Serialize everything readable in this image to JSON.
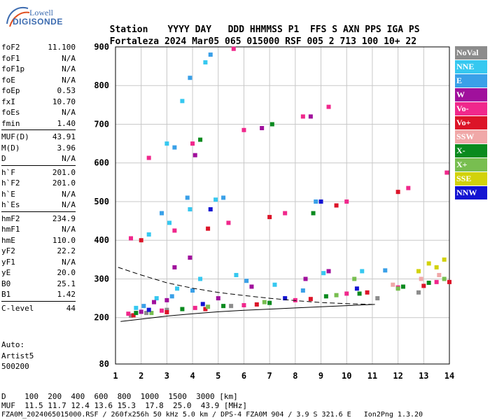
{
  "logo": {
    "line1": "Lowell",
    "line2": "DIGISONDE"
  },
  "header": {
    "row1": [
      "Station",
      "YYYY",
      "DAY",
      "DDD",
      "HHMMSS",
      "P1",
      "FFS",
      "S",
      "AXN",
      "PPS",
      "IGA",
      "PS"
    ],
    "row2": [
      "Fortaleza",
      "2024",
      "Mar05",
      "065",
      "015000",
      "RSF",
      "005",
      "2",
      "713",
      "100",
      "10+",
      "22"
    ]
  },
  "params": [
    [
      {
        "k": "foF2",
        "v": "11.100"
      },
      {
        "k": "foF1",
        "v": "N/A"
      },
      {
        "k": "foF1p",
        "v": "N/A"
      },
      {
        "k": "foE",
        "v": "N/A"
      },
      {
        "k": "foEp",
        "v": "0.53"
      },
      {
        "k": "fxI",
        "v": "10.70"
      },
      {
        "k": "foEs",
        "v": "N/A"
      },
      {
        "k": "fmin",
        "v": "1.40"
      }
    ],
    [
      {
        "k": "MUF(D)",
        "v": "43.91"
      },
      {
        "k": "M(D)",
        "v": "3.96"
      },
      {
        "k": "D",
        "v": "N/A"
      }
    ],
    [
      {
        "k": "h`F",
        "v": "201.0"
      },
      {
        "k": "h`F2",
        "v": "201.0"
      },
      {
        "k": "h`E",
        "v": "N/A"
      },
      {
        "k": "h`Es",
        "v": "N/A"
      }
    ],
    [
      {
        "k": "hmF2",
        "v": "234.9"
      },
      {
        "k": "hmF1",
        "v": "N/A"
      },
      {
        "k": "hmE",
        "v": "110.0"
      },
      {
        "k": "yF2",
        "v": "22.2"
      },
      {
        "k": "yF1",
        "v": "N/A"
      },
      {
        "k": "yE",
        "v": "20.0"
      },
      {
        "k": "B0",
        "v": "25.1"
      },
      {
        "k": "B1",
        "v": "1.42"
      }
    ],
    [
      {
        "k": "C-level",
        "v": "44"
      }
    ]
  ],
  "auto": {
    "line1": "Auto:",
    "line2": "Artist5",
    "line3": "500200"
  },
  "legend": [
    {
      "label": "NoVal",
      "color": "#8c8c8c"
    },
    {
      "label": "NNE",
      "color": "#36c8f0"
    },
    {
      "label": "E",
      "color": "#3aa0e8"
    },
    {
      "label": "W",
      "color": "#a0109c"
    },
    {
      "label": "Vo-",
      "color": "#f0288c"
    },
    {
      "label": "Vo+",
      "color": "#dc1428"
    },
    {
      "label": "SSW",
      "color": "#f0a8a8"
    },
    {
      "label": "X-",
      "color": "#0a8a1e"
    },
    {
      "label": "X+",
      "color": "#78be50"
    },
    {
      "label": "SSE",
      "color": "#d2d20a"
    },
    {
      "label": "NNW",
      "color": "#1414d2"
    }
  ],
  "chart_data": {
    "type": "scatter",
    "xlim": [
      1,
      14
    ],
    "ylim": [
      80,
      900
    ],
    "x_ticks": [
      1,
      2,
      3,
      4,
      5,
      6,
      7,
      8,
      9,
      10,
      11,
      12,
      13,
      14
    ],
    "y_ticks": [
      80,
      200,
      300,
      400,
      500,
      600,
      700,
      800,
      900
    ],
    "grid": true,
    "series": [
      {
        "label": "NoVal",
        "color": "#8c8c8c",
        "points": [
          [
            1.6,
            205
          ],
          [
            2.2,
            212
          ],
          [
            3.0,
            220
          ],
          [
            5.5,
            230
          ],
          [
            11.2,
            250
          ],
          [
            12.8,
            265
          ]
        ]
      },
      {
        "label": "NNE",
        "color": "#36c8f0",
        "points": [
          [
            1.8,
            225
          ],
          [
            2.6,
            250
          ],
          [
            3.4,
            275
          ],
          [
            4.3,
            300
          ],
          [
            5.7,
            310
          ],
          [
            7.2,
            285
          ],
          [
            9.1,
            315
          ],
          [
            10.6,
            320
          ],
          [
            2.3,
            415
          ],
          [
            3.1,
            445
          ],
          [
            3.9,
            480
          ],
          [
            4.9,
            505
          ],
          [
            3.0,
            650
          ],
          [
            3.6,
            760
          ],
          [
            4.5,
            860
          ]
        ]
      },
      {
        "label": "E",
        "color": "#3aa0e8",
        "points": [
          [
            2.1,
            230
          ],
          [
            3.2,
            255
          ],
          [
            4.0,
            270
          ],
          [
            6.1,
            295
          ],
          [
            8.3,
            270
          ],
          [
            11.5,
            322
          ],
          [
            2.8,
            470
          ],
          [
            3.8,
            510
          ],
          [
            5.2,
            510
          ],
          [
            8.8,
            500
          ],
          [
            3.3,
            640
          ],
          [
            3.9,
            820
          ],
          [
            4.7,
            880
          ]
        ]
      },
      {
        "label": "W",
        "color": "#a0109c",
        "points": [
          [
            2.0,
            215
          ],
          [
            2.5,
            240
          ],
          [
            3.0,
            245
          ],
          [
            3.3,
            330
          ],
          [
            3.9,
            355
          ],
          [
            5.0,
            250
          ],
          [
            6.3,
            280
          ],
          [
            8.4,
            300
          ],
          [
            9.3,
            320
          ],
          [
            4.1,
            620
          ],
          [
            6.7,
            690
          ],
          [
            8.6,
            720
          ]
        ]
      },
      {
        "label": "Vo-",
        "color": "#f0288c",
        "points": [
          [
            1.5,
            210
          ],
          [
            2.8,
            218
          ],
          [
            4.1,
            225
          ],
          [
            6.0,
            232
          ],
          [
            8.0,
            245
          ],
          [
            10.0,
            262
          ],
          [
            12.0,
            278
          ],
          [
            13.5,
            292
          ],
          [
            1.6,
            405
          ],
          [
            3.3,
            425
          ],
          [
            5.4,
            445
          ],
          [
            7.6,
            470
          ],
          [
            10.0,
            500
          ],
          [
            12.4,
            535
          ],
          [
            13.9,
            575
          ],
          [
            2.3,
            613
          ],
          [
            4.0,
            650
          ],
          [
            6.0,
            685
          ],
          [
            8.3,
            720
          ],
          [
            9.3,
            745
          ],
          [
            5.6,
            895
          ]
        ]
      },
      {
        "label": "Vo+",
        "color": "#dc1428",
        "points": [
          [
            1.7,
            206
          ],
          [
            3.0,
            214
          ],
          [
            4.5,
            222
          ],
          [
            6.5,
            234
          ],
          [
            8.6,
            248
          ],
          [
            10.8,
            265
          ],
          [
            13.0,
            282
          ],
          [
            14.0,
            292
          ],
          [
            2.0,
            400
          ],
          [
            4.6,
            430
          ],
          [
            7.0,
            460
          ],
          [
            9.6,
            490
          ],
          [
            12.0,
            525
          ]
        ]
      },
      {
        "label": "SSW",
        "color": "#f0a8a8",
        "points": [
          [
            11.8,
            285
          ],
          [
            12.9,
            300
          ],
          [
            13.6,
            310
          ]
        ]
      },
      {
        "label": "X-",
        "color": "#0a8a1e",
        "points": [
          [
            1.8,
            212
          ],
          [
            3.6,
            222
          ],
          [
            5.2,
            230
          ],
          [
            7.0,
            238
          ],
          [
            9.2,
            255
          ],
          [
            10.5,
            262
          ],
          [
            12.2,
            280
          ],
          [
            13.2,
            290
          ],
          [
            8.7,
            470
          ],
          [
            4.3,
            660
          ],
          [
            7.1,
            700
          ]
        ]
      },
      {
        "label": "X+",
        "color": "#78be50",
        "points": [
          [
            2.4,
            212
          ],
          [
            4.6,
            228
          ],
          [
            6.8,
            240
          ],
          [
            9.6,
            258
          ],
          [
            12.0,
            275
          ],
          [
            13.8,
            300
          ],
          [
            10.3,
            300
          ]
        ]
      },
      {
        "label": "SSE",
        "color": "#d2d20a",
        "points": [
          [
            12.8,
            320
          ],
          [
            13.2,
            340
          ],
          [
            13.5,
            330
          ],
          [
            13.8,
            350
          ]
        ]
      },
      {
        "label": "NNW",
        "color": "#1414d2",
        "points": [
          [
            2.3,
            220
          ],
          [
            4.4,
            235
          ],
          [
            7.6,
            250
          ],
          [
            10.4,
            275
          ],
          [
            4.7,
            480
          ],
          [
            9.0,
            500
          ]
        ]
      }
    ],
    "lines": [
      {
        "style": "dashed",
        "points": [
          [
            1.1,
            330
          ],
          [
            2,
            310
          ],
          [
            3,
            290
          ],
          [
            4,
            276
          ],
          [
            5,
            265
          ],
          [
            6,
            257
          ],
          [
            7,
            250
          ],
          [
            8,
            244
          ],
          [
            9,
            239
          ],
          [
            10,
            236
          ],
          [
            11,
            234
          ]
        ]
      },
      {
        "style": "solid",
        "points": [
          [
            1.2,
            190
          ],
          [
            2,
            196
          ],
          [
            3,
            204
          ],
          [
            4,
            210
          ],
          [
            5,
            215
          ],
          [
            6,
            219
          ],
          [
            7,
            222
          ],
          [
            8,
            225
          ],
          [
            9,
            228
          ],
          [
            10,
            231
          ],
          [
            11.1,
            234
          ]
        ]
      }
    ]
  },
  "bottom": {
    "line1": "D    100  200  400  600  800  1000  1500  3000 [km]",
    "line2": "MUF  11.5 11.7 12.4 13.6 15.3  17.8  25.0  43.9 [MHz]",
    "line3": "FZA0M_2024065015000.RSF / 260fx256h 50 kHz 5.0 km / DPS-4 FZA0M 904 / 3.9 S 321.6 E   Ion2Png 1.3.20"
  }
}
